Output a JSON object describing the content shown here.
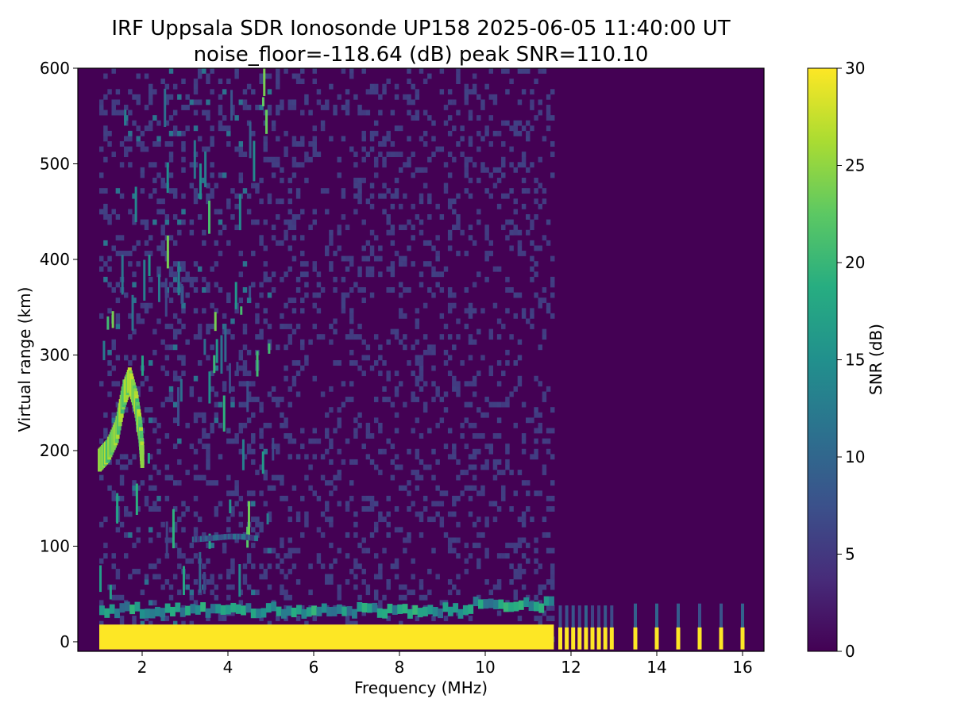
{
  "chart_data": {
    "type": "heatmap",
    "title": "IRF Uppsala SDR Ionosonde UP158 2025-06-05 11:40:00  UT",
    "subtitle": "noise_floor=-118.64 (dB) peak SNR=110.10",
    "xlabel": "Frequency (MHz)",
    "ylabel": "Virtual range (km)",
    "xlim": [
      0.5,
      16.5
    ],
    "ylim": [
      -10,
      600
    ],
    "xticks": [
      "2",
      "4",
      "6",
      "8",
      "10",
      "12",
      "14",
      "16"
    ],
    "yticks": [
      "0",
      "100",
      "200",
      "300",
      "400",
      "500",
      "600"
    ],
    "grid": false,
    "colorbar": {
      "label": "SNR (dB)",
      "range": [
        0,
        30
      ],
      "ticks": [
        "0",
        "5",
        "10",
        "15",
        "20",
        "25",
        "30"
      ],
      "colormap": "viridis",
      "colors": [
        "#440154",
        "#472c7a",
        "#3b518b",
        "#2c718e",
        "#21908d",
        "#27ad81",
        "#5cc863",
        "#aadc32",
        "#fde725"
      ]
    },
    "data_freq_range_mhz": [
      1.0,
      16.3
    ],
    "ground_echo": {
      "range_km": [
        0,
        30
      ],
      "freq_mhz": [
        1.0,
        11.6
      ],
      "snr_db": 30
    },
    "discrete_channels_mhz": [
      11.75,
      11.9,
      12.05,
      12.2,
      12.35,
      12.5,
      12.65,
      12.8,
      12.95,
      13.5,
      14.0,
      14.5,
      15.0,
      15.5,
      16.0
    ],
    "traces": [
      {
        "name": "F-trace",
        "points": [
          [
            1.0,
            190
          ],
          [
            1.2,
            200
          ],
          [
            1.4,
            220
          ],
          [
            1.55,
            255
          ],
          [
            1.7,
            275
          ],
          [
            1.85,
            250
          ],
          [
            1.95,
            220
          ],
          [
            2.0,
            190
          ]
        ],
        "snr_db": 28
      },
      {
        "name": "Es-layer",
        "points": [
          [
            3.2,
            107
          ],
          [
            3.5,
            108
          ],
          [
            4.0,
            110
          ],
          [
            4.3,
            110
          ],
          [
            4.7,
            108
          ]
        ],
        "snr_db": 12
      }
    ],
    "background_snr_db": 1
  }
}
